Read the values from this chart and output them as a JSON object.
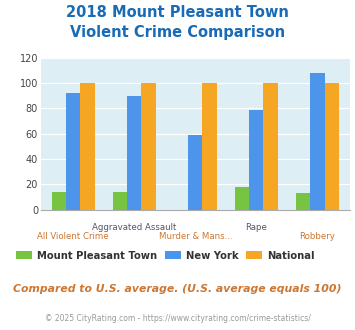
{
  "title_line1": "2018 Mount Pleasant Town",
  "title_line2": "Violent Crime Comparison",
  "categories": [
    "All Violent Crime",
    "Aggravated Assault",
    "Murder & Mans...",
    "Rape",
    "Robbery"
  ],
  "x_label_top": [
    "",
    "Aggravated Assault",
    "",
    "Rape",
    ""
  ],
  "x_label_bot": [
    "All Violent Crime",
    "",
    "Murder & Mans...",
    "",
    "Robbery"
  ],
  "series": {
    "Mount Pleasant Town": [
      14,
      14,
      0,
      18,
      13
    ],
    "New York": [
      92,
      90,
      59,
      79,
      108
    ],
    "National": [
      100,
      100,
      100,
      100,
      100
    ]
  },
  "series_colors": {
    "Mount Pleasant Town": "#76c442",
    "New York": "#4d94eb",
    "National": "#f5a623"
  },
  "ylim": [
    0,
    120
  ],
  "yticks": [
    0,
    20,
    40,
    60,
    80,
    100,
    120
  ],
  "background_color": "#deeef5",
  "title_color": "#1a6bb5",
  "x_label_top_color": "#555566",
  "x_label_bot_color": "#cc7733",
  "footnote": "Compared to U.S. average. (U.S. average equals 100)",
  "copyright": "© 2025 CityRating.com - https://www.cityrating.com/crime-statistics/",
  "footnote_color": "#cc7733",
  "copyright_color": "#999999"
}
